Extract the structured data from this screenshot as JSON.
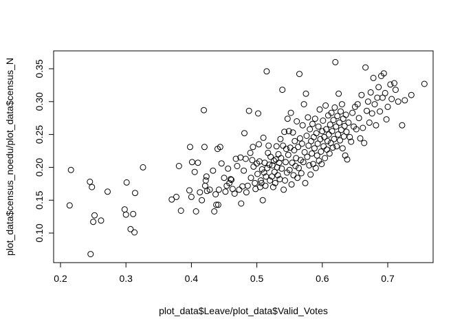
{
  "chart_data": {
    "type": "scatter",
    "title": "",
    "xlabel": "plot_data$Leave/plot_data$Valid_Votes",
    "ylabel": "plot_data$census_noedu/plot_data$census_N",
    "xlim": [
      0.2,
      0.75
    ],
    "ylim": [
      0.07,
      0.36
    ],
    "x_ticks": [
      0.2,
      0.3,
      0.4,
      0.5,
      0.6,
      0.7
    ],
    "x_tick_labels": [
      "0.2",
      "0.3",
      "0.4",
      "0.5",
      "0.6",
      "0.7"
    ],
    "y_ticks": [
      0.1,
      0.15,
      0.2,
      0.25,
      0.3,
      0.35
    ],
    "y_tick_labels": [
      "0.10",
      "0.15",
      "0.20",
      "0.25",
      "0.30",
      "0.35"
    ],
    "grid": false,
    "points": [
      [
        0.214,
        0.142
      ],
      [
        0.216,
        0.196
      ],
      [
        0.245,
        0.178
      ],
      [
        0.248,
        0.17
      ],
      [
        0.246,
        0.068
      ],
      [
        0.25,
        0.117
      ],
      [
        0.252,
        0.127
      ],
      [
        0.262,
        0.119
      ],
      [
        0.272,
        0.163
      ],
      [
        0.298,
        0.136
      ],
      [
        0.301,
        0.177
      ],
      [
        0.3,
        0.128
      ],
      [
        0.307,
        0.106
      ],
      [
        0.311,
        0.129
      ],
      [
        0.313,
        0.101
      ],
      [
        0.314,
        0.161
      ],
      [
        0.326,
        0.2
      ],
      [
        0.37,
        0.151
      ],
      [
        0.377,
        0.155
      ],
      [
        0.381,
        0.202
      ],
      [
        0.384,
        0.134
      ],
      [
        0.397,
        0.165
      ],
      [
        0.398,
        0.231
      ],
      [
        0.4,
        0.155
      ],
      [
        0.401,
        0.208
      ],
      [
        0.405,
        0.193
      ],
      [
        0.407,
        0.133
      ],
      [
        0.41,
        0.207
      ],
      [
        0.413,
        0.162
      ],
      [
        0.416,
        0.15
      ],
      [
        0.419,
        0.287
      ],
      [
        0.42,
        0.231
      ],
      [
        0.421,
        0.172
      ],
      [
        0.422,
        0.18
      ],
      [
        0.423,
        0.186
      ],
      [
        0.424,
        0.164
      ],
      [
        0.428,
        0.166
      ],
      [
        0.433,
        0.195
      ],
      [
        0.435,
        0.133
      ],
      [
        0.437,
        0.159
      ],
      [
        0.438,
        0.143
      ],
      [
        0.44,
        0.228
      ],
      [
        0.441,
        0.143
      ],
      [
        0.442,
        0.166
      ],
      [
        0.444,
        0.231
      ],
      [
        0.446,
        0.206
      ],
      [
        0.45,
        0.184
      ],
      [
        0.452,
        0.163
      ],
      [
        0.454,
        0.172
      ],
      [
        0.456,
        0.198
      ],
      [
        0.458,
        0.176
      ],
      [
        0.46,
        0.182
      ],
      [
        0.461,
        0.181
      ],
      [
        0.463,
        0.167
      ],
      [
        0.466,
        0.16
      ],
      [
        0.468,
        0.213
      ],
      [
        0.47,
        0.202
      ],
      [
        0.473,
        0.166
      ],
      [
        0.475,
        0.215
      ],
      [
        0.476,
        0.145
      ],
      [
        0.478,
        0.171
      ],
      [
        0.48,
        0.195
      ],
      [
        0.481,
        0.252
      ],
      [
        0.483,
        0.213
      ],
      [
        0.484,
        0.162
      ],
      [
        0.486,
        0.172
      ],
      [
        0.488,
        0.286
      ],
      [
        0.49,
        0.222
      ],
      [
        0.491,
        0.184
      ],
      [
        0.493,
        0.211
      ],
      [
        0.494,
        0.231
      ],
      [
        0.495,
        0.201
      ],
      [
        0.497,
        0.176
      ],
      [
        0.498,
        0.167
      ],
      [
        0.5,
        0.206
      ],
      [
        0.501,
        0.19
      ],
      [
        0.502,
        0.282
      ],
      [
        0.503,
        0.235
      ],
      [
        0.504,
        0.209
      ],
      [
        0.505,
        0.17
      ],
      [
        0.506,
        0.18
      ],
      [
        0.507,
        0.176
      ],
      [
        0.508,
        0.197
      ],
      [
        0.509,
        0.15
      ],
      [
        0.51,
        0.245
      ],
      [
        0.511,
        0.192
      ],
      [
        0.512,
        0.207
      ],
      [
        0.513,
        0.172
      ],
      [
        0.514,
        0.186
      ],
      [
        0.515,
        0.346
      ],
      [
        0.516,
        0.199
      ],
      [
        0.517,
        0.222
      ],
      [
        0.518,
        0.233
      ],
      [
        0.519,
        0.204
      ],
      [
        0.52,
        0.18
      ],
      [
        0.521,
        0.216
      ],
      [
        0.523,
        0.186
      ],
      [
        0.524,
        0.203
      ],
      [
        0.525,
        0.17
      ],
      [
        0.526,
        0.21
      ],
      [
        0.527,
        0.193
      ],
      [
        0.528,
        0.176
      ],
      [
        0.529,
        0.212
      ],
      [
        0.53,
        0.232
      ],
      [
        0.531,
        0.2
      ],
      [
        0.532,
        0.188
      ],
      [
        0.533,
        0.22
      ],
      [
        0.534,
        0.207
      ],
      [
        0.535,
        0.182
      ],
      [
        0.536,
        0.243
      ],
      [
        0.537,
        0.214
      ],
      [
        0.538,
        0.198
      ],
      [
        0.539,
        0.318
      ],
      [
        0.54,
        0.233
      ],
      [
        0.541,
        0.166
      ],
      [
        0.542,
        0.254
      ],
      [
        0.543,
        0.18
      ],
      [
        0.544,
        0.208
      ],
      [
        0.545,
        0.228
      ],
      [
        0.546,
        0.192
      ],
      [
        0.547,
        0.274
      ],
      [
        0.548,
        0.219
      ],
      [
        0.549,
        0.255
      ],
      [
        0.55,
        0.196
      ],
      [
        0.551,
        0.23
      ],
      [
        0.552,
        0.283
      ],
      [
        0.553,
        0.174
      ],
      [
        0.554,
        0.207
      ],
      [
        0.555,
        0.253
      ],
      [
        0.556,
        0.188
      ],
      [
        0.557,
        0.226
      ],
      [
        0.558,
        0.24
      ],
      [
        0.559,
        0.202
      ],
      [
        0.56,
        0.214
      ],
      [
        0.561,
        0.27
      ],
      [
        0.562,
        0.184
      ],
      [
        0.563,
        0.231
      ],
      [
        0.564,
        0.199
      ],
      [
        0.565,
        0.342
      ],
      [
        0.566,
        0.244
      ],
      [
        0.567,
        0.211
      ],
      [
        0.568,
        0.191
      ],
      [
        0.569,
        0.236
      ],
      [
        0.57,
        0.264
      ],
      [
        0.571,
        0.208
      ],
      [
        0.572,
        0.296
      ],
      [
        0.573,
        0.223
      ],
      [
        0.574,
        0.176
      ],
      [
        0.575,
        0.312
      ],
      [
        0.576,
        0.248
      ],
      [
        0.577,
        0.216
      ],
      [
        0.578,
        0.276
      ],
      [
        0.579,
        0.233
      ],
      [
        0.58,
        0.203
      ],
      [
        0.581,
        0.258
      ],
      [
        0.582,
        0.189
      ],
      [
        0.583,
        0.24
      ],
      [
        0.584,
        0.221
      ],
      [
        0.585,
        0.266
      ],
      [
        0.586,
        0.205
      ],
      [
        0.587,
        0.246
      ],
      [
        0.588,
        0.229
      ],
      [
        0.589,
        0.274
      ],
      [
        0.59,
        0.199
      ],
      [
        0.591,
        0.252
      ],
      [
        0.592,
        0.218
      ],
      [
        0.593,
        0.236
      ],
      [
        0.594,
        0.262
      ],
      [
        0.595,
        0.21
      ],
      [
        0.596,
        0.288
      ],
      [
        0.597,
        0.243
      ],
      [
        0.598,
        0.224
      ],
      [
        0.599,
        0.205
      ],
      [
        0.6,
        0.255
      ],
      [
        0.601,
        0.271
      ],
      [
        0.602,
        0.232
      ],
      [
        0.603,
        0.246
      ],
      [
        0.604,
        0.214
      ],
      [
        0.605,
        0.294
      ],
      [
        0.606,
        0.258
      ],
      [
        0.607,
        0.227
      ],
      [
        0.608,
        0.24
      ],
      [
        0.609,
        0.279
      ],
      [
        0.61,
        0.25
      ],
      [
        0.611,
        0.221
      ],
      [
        0.612,
        0.265
      ],
      [
        0.613,
        0.237
      ],
      [
        0.614,
        0.283
      ],
      [
        0.615,
        0.255
      ],
      [
        0.616,
        0.23
      ],
      [
        0.617,
        0.272
      ],
      [
        0.618,
        0.243
      ],
      [
        0.619,
        0.291
      ],
      [
        0.62,
        0.36
      ],
      [
        0.621,
        0.262
      ],
      [
        0.622,
        0.232
      ],
      [
        0.623,
        0.278
      ],
      [
        0.624,
        0.25
      ],
      [
        0.625,
        0.312
      ],
      [
        0.626,
        0.268
      ],
      [
        0.627,
        0.241
      ],
      [
        0.628,
        0.285
      ],
      [
        0.629,
        0.257
      ],
      [
        0.63,
        0.296
      ],
      [
        0.631,
        0.229
      ],
      [
        0.632,
        0.274
      ],
      [
        0.633,
        0.247
      ],
      [
        0.634,
        0.263
      ],
      [
        0.635,
        0.218
      ],
      [
        0.636,
        0.28
      ],
      [
        0.637,
        0.254
      ],
      [
        0.638,
        0.212
      ],
      [
        0.64,
        0.268
      ],
      [
        0.642,
        0.246
      ],
      [
        0.644,
        0.239
      ],
      [
        0.646,
        0.283
      ],
      [
        0.648,
        0.262
      ],
      [
        0.65,
        0.292
      ],
      [
        0.652,
        0.258
      ],
      [
        0.654,
        0.296
      ],
      [
        0.656,
        0.275
      ],
      [
        0.658,
        0.244
      ],
      [
        0.66,
        0.31
      ],
      [
        0.662,
        0.26
      ],
      [
        0.664,
        0.237
      ],
      [
        0.666,
        0.352
      ],
      [
        0.668,
        0.286
      ],
      [
        0.67,
        0.3
      ],
      [
        0.672,
        0.268
      ],
      [
        0.674,
        0.314
      ],
      [
        0.676,
        0.282
      ],
      [
        0.678,
        0.336
      ],
      [
        0.68,
        0.296
      ],
      [
        0.682,
        0.264
      ],
      [
        0.684,
        0.306
      ],
      [
        0.686,
        0.322
      ],
      [
        0.688,
        0.285
      ],
      [
        0.69,
        0.339
      ],
      [
        0.692,
        0.306
      ],
      [
        0.694,
        0.343
      ],
      [
        0.696,
        0.313
      ],
      [
        0.698,
        0.273
      ],
      [
        0.7,
        0.292
      ],
      [
        0.704,
        0.326
      ],
      [
        0.706,
        0.304
      ],
      [
        0.71,
        0.328
      ],
      [
        0.712,
        0.318
      ],
      [
        0.716,
        0.3
      ],
      [
        0.722,
        0.264
      ],
      [
        0.726,
        0.302
      ],
      [
        0.736,
        0.31
      ],
      [
        0.756,
        0.327
      ]
    ]
  }
}
